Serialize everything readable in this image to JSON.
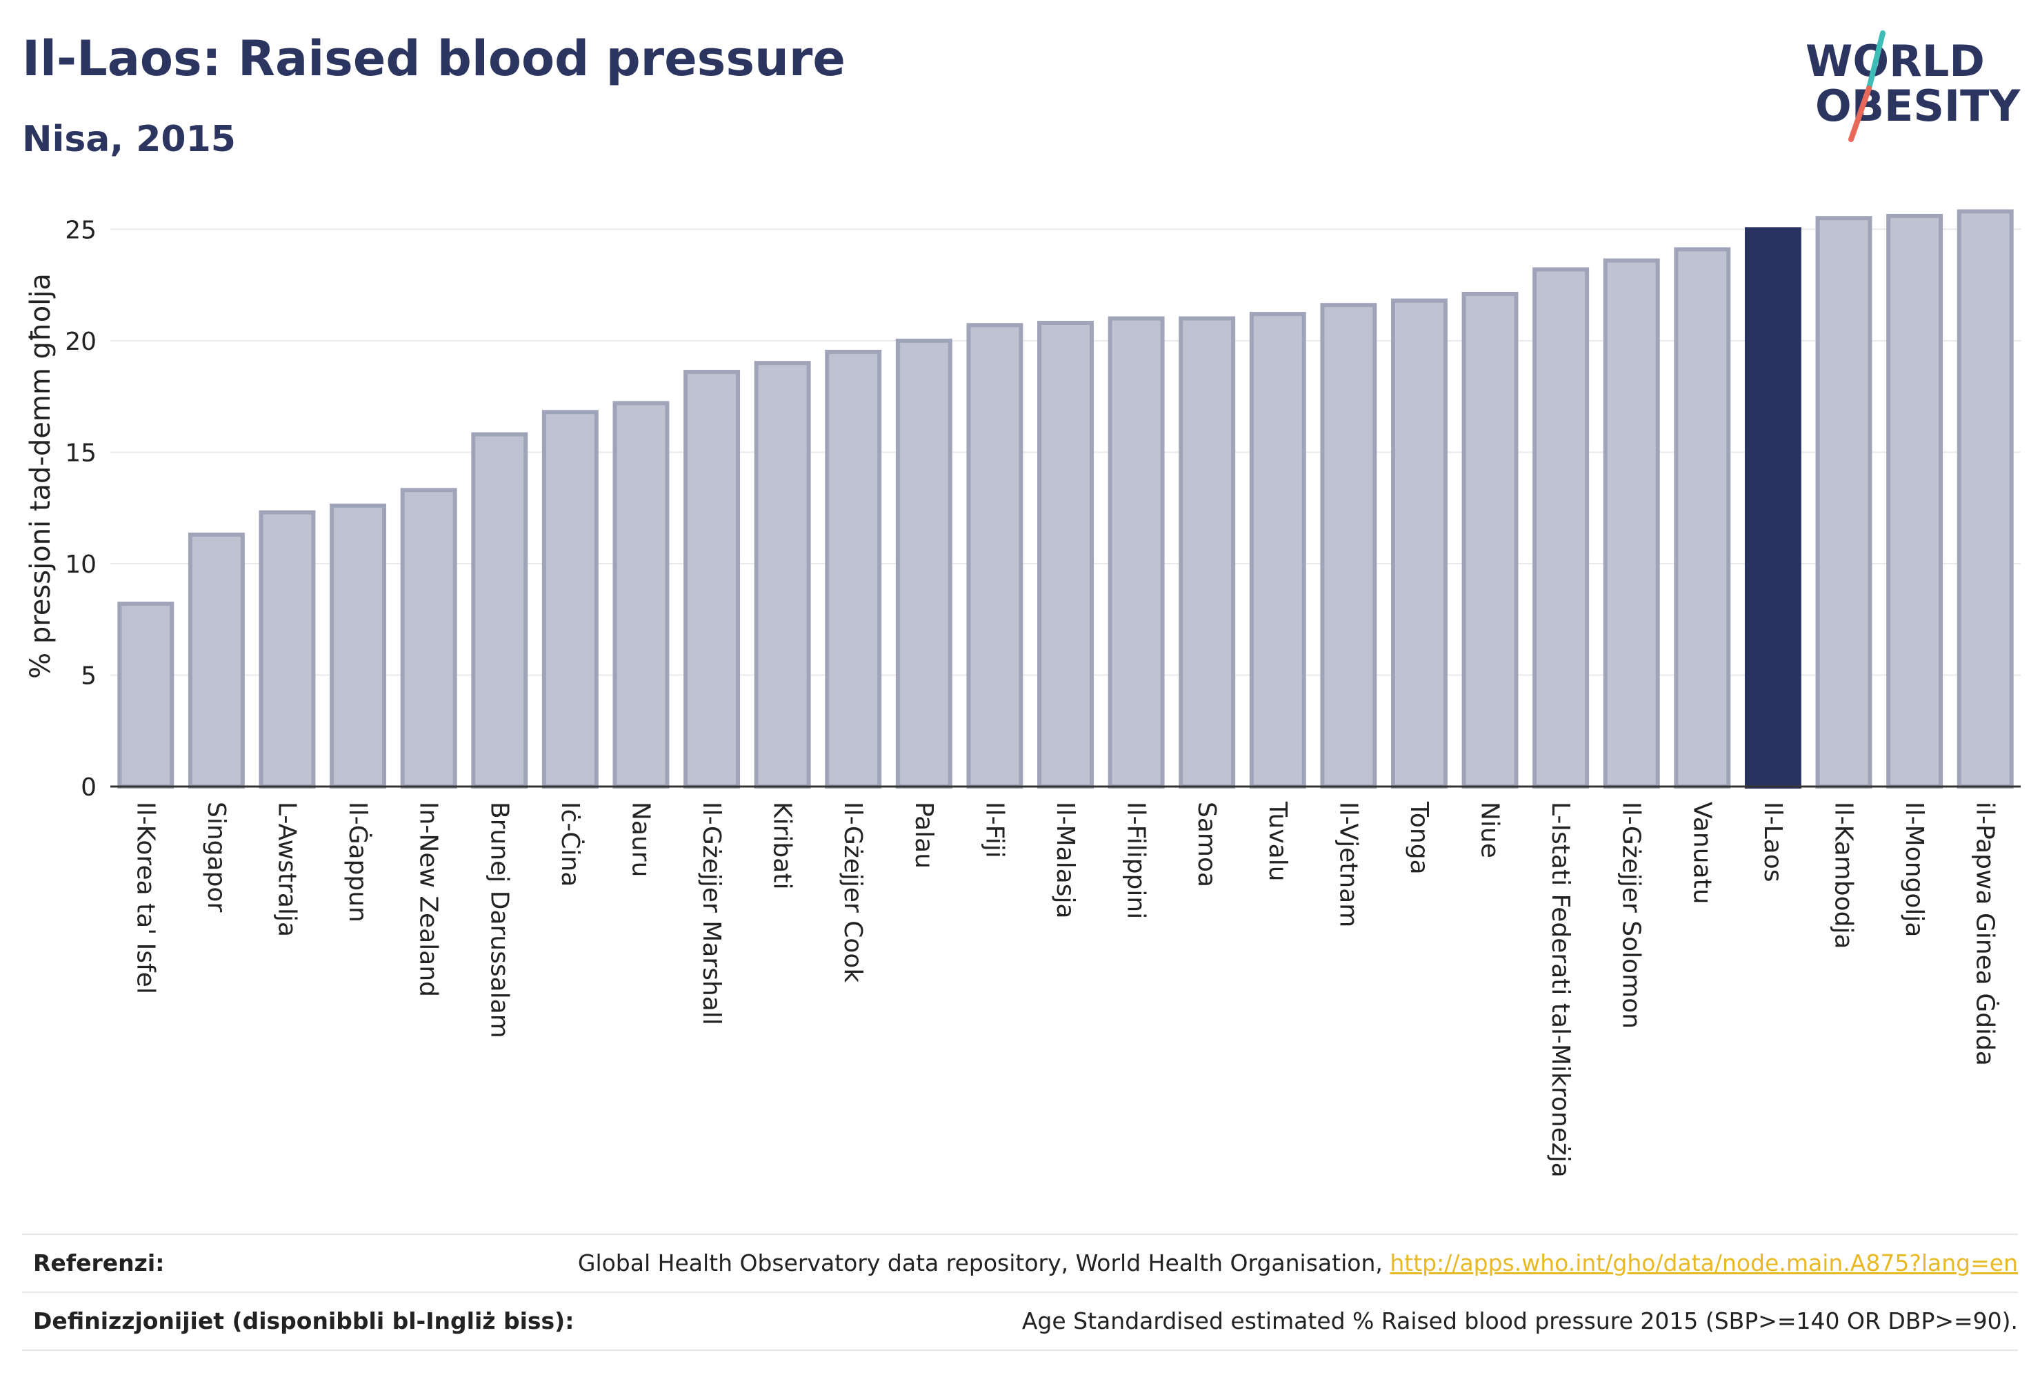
{
  "header": {
    "title": "Il-Laos: Raised blood pressure",
    "subtitle": "Nisa, 2015"
  },
  "logo": {
    "line1": "WORLD",
    "line2": "OBESITY",
    "slash_colors": [
      "#3dbdb5",
      "#e8685a"
    ],
    "text_color": "#2b3560"
  },
  "colors": {
    "bar": "#bfc2d0",
    "bar_stroke": "#9fa4b9",
    "highlight": "#283360",
    "grid": "#e9e9ee",
    "axis": "#333333"
  },
  "chart_data": {
    "type": "bar",
    "ylabel": "% pressjoni tad-demm għolja",
    "ylim": [
      0,
      26
    ],
    "yticks": [
      0,
      5,
      10,
      15,
      20,
      25
    ],
    "grid": true,
    "highlight": "Il-Laos",
    "categories": [
      "Il-Korea ta' Isfel",
      "Singapor",
      "L-Awstralja",
      "Il-Ġappun",
      "In-New Zealand",
      "Brunej Darussalam",
      "Iċ-Ċina",
      "Nauru",
      "Il-Gżejjer Marshall",
      "Kiribati",
      "Il-Gżejjer Cook",
      "Palau",
      "Il-Fiji",
      "Il-Malasja",
      "Il-Filippini",
      "Samoa",
      "Tuvalu",
      "Il-Vjetnam",
      "Tonga",
      "Niue",
      "L-Istati Federati tal-Mikroneżja",
      "Il-Gżejjer Solomon",
      "Vanuatu",
      "Il-Laos",
      "Il-Kambodja",
      "Il-Mongolja",
      "il-Papwa Ginea Ġdida"
    ],
    "values": [
      8.2,
      11.3,
      12.3,
      12.6,
      13.3,
      15.8,
      16.8,
      17.2,
      18.6,
      19.0,
      19.5,
      20.0,
      20.7,
      20.8,
      21.0,
      21.0,
      21.2,
      21.6,
      21.8,
      22.1,
      23.2,
      23.6,
      24.1,
      25.0,
      25.5,
      25.6,
      25.8
    ]
  },
  "footer": {
    "references_label": "Referenzi:",
    "references_text": "Global Health Observatory data repository, World Health Organisation, ",
    "references_link": "http://apps.who.int/gho/data/node.main.A875?lang=en",
    "definitions_label": "Definizzjonijiet (disponibbli bl-Ingliż biss):",
    "definitions_text": "Age Standardised estimated % Raised blood pressure 2015 (SBP>=140 OR DBP>=90)."
  }
}
